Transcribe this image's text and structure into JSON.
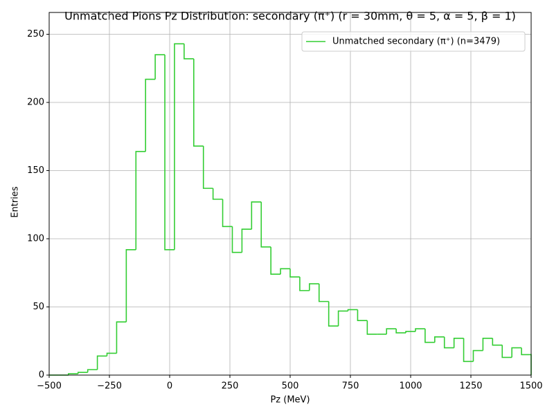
{
  "chart_data": {
    "type": "histogram",
    "title": "Unmatched Pions Pz Distribution: secondary (π⁺) (r = 30mm, θ = 5, α = 5, β = 1)",
    "x_label": "Pz (MeV)",
    "y_label": "Entries",
    "bins": [
      -500,
      -460,
      -420,
      -380,
      -340,
      -300,
      -260,
      -220,
      -180,
      -140,
      -100,
      -60,
      -20,
      20,
      60,
      100,
      140,
      180,
      220,
      260,
      300,
      340,
      380,
      420,
      460,
      500,
      540,
      580,
      620,
      660,
      700,
      740,
      780,
      820,
      860,
      900,
      940,
      980,
      1020,
      1060,
      1100,
      1140,
      1180,
      1220,
      1260,
      1300,
      1340,
      1380,
      1420,
      1460,
      1500
    ],
    "series": [
      {
        "name": "Unmatched secondary (π⁺) (n=3479)",
        "color": "#32cd32",
        "values": [
          0,
          0,
          1,
          2,
          4,
          14,
          16,
          39,
          92,
          164,
          217,
          235,
          92,
          243,
          232,
          168,
          137,
          129,
          109,
          90,
          107,
          127,
          94,
          74,
          78,
          72,
          62,
          67,
          54,
          36,
          47,
          48,
          40,
          30,
          30,
          34,
          31,
          32,
          34,
          24,
          28,
          20,
          27,
          10,
          18,
          27,
          22,
          13,
          20,
          15
        ]
      }
    ],
    "xlim": [
      -500,
      1500
    ],
    "xticks": [
      {
        "value": -500,
        "label": "−500"
      },
      {
        "value": -250,
        "label": "−250"
      },
      0,
      250,
      500,
      750,
      1000,
      1250,
      1500
    ],
    "ylim": [
      0,
      266
    ],
    "yticks": [
      0,
      50,
      100,
      150,
      200,
      250
    ],
    "grid": true,
    "legend": "upper right"
  }
}
